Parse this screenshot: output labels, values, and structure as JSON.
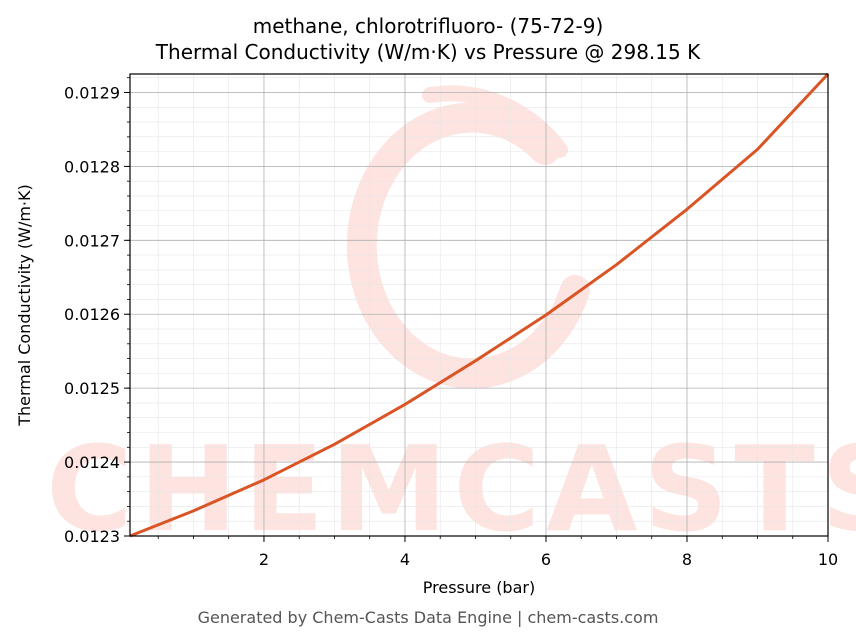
{
  "chart_data": {
    "type": "line",
    "title": "methane, chlorotrifluoro- (75-72-9)",
    "subtitle": "Thermal Conductivity (W/m·K) vs Pressure @ 298.15 K",
    "xlabel": "Pressure (bar)",
    "ylabel": "Thermal Conductivity (W/m·K)",
    "xlim": [
      0.1,
      10
    ],
    "ylim": [
      0.0123,
      0.012925
    ],
    "xticks": [
      2,
      4,
      6,
      8,
      10
    ],
    "xtick_labels": [
      "2",
      "4",
      "6",
      "8",
      "10"
    ],
    "yticks": [
      0.0123,
      0.0124,
      0.0125,
      0.0126,
      0.0127,
      0.0128,
      0.0129
    ],
    "ytick_labels": [
      "0.0123",
      "0.0124",
      "0.0125",
      "0.0126",
      "0.0127",
      "0.0128",
      "0.0129"
    ],
    "grid": true,
    "line_color": "#d95525",
    "watermark_color": "#fde4e1",
    "watermark_text": "CHEMCASTS",
    "series": [
      {
        "x": [
          0.1,
          1,
          2,
          3,
          4,
          5,
          6,
          7,
          8,
          9,
          10
        ],
        "y": [
          0.0123,
          0.012334,
          0.012376,
          0.012424,
          0.012478,
          0.012537,
          0.012599,
          0.012667,
          0.012742,
          0.012823,
          0.012925
        ]
      }
    ]
  },
  "footer": "Generated by Chem-Casts Data Engine | chem-casts.com"
}
